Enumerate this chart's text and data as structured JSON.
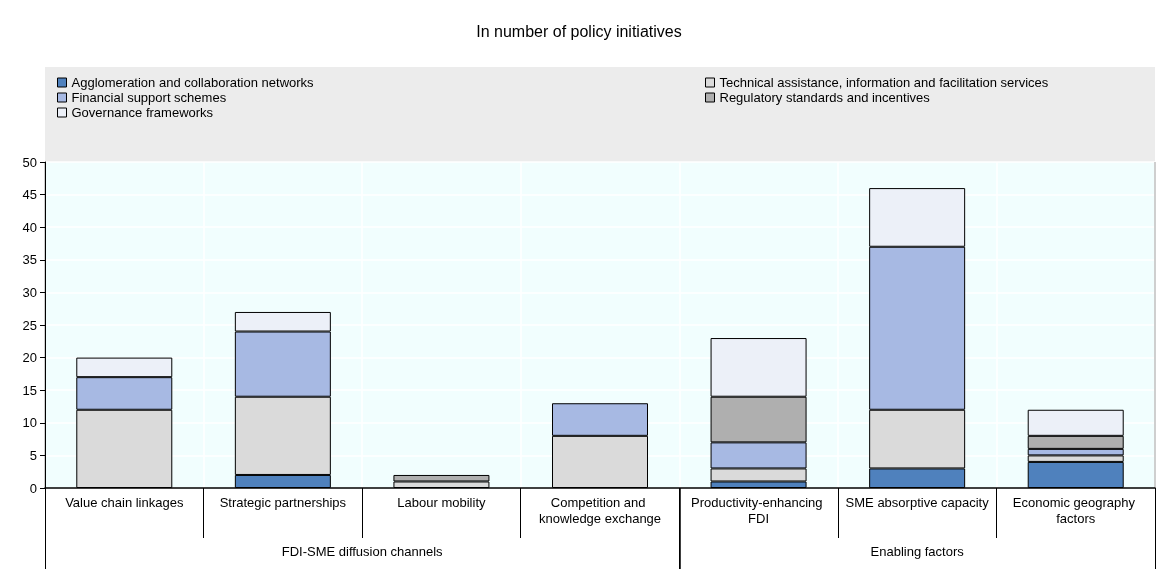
{
  "chart_data": {
    "type": "bar",
    "stacked": true,
    "title": "In number of policy initiatives",
    "categories": [
      "Value chain linkages",
      "Strategic partnerships",
      "Labour mobility",
      "Competition and knowledge exchange",
      "Productivity-enhancing FDI",
      "SME absorptive capacity",
      "Economic geography factors"
    ],
    "series": [
      {
        "name": "Agglomeration and collaboration networks",
        "color": "#4f81bd",
        "values": [
          0,
          2,
          0,
          0,
          1,
          3,
          4
        ]
      },
      {
        "name": "Technical assistance, information and facilitation services",
        "color": "#dadada",
        "values": [
          12,
          12,
          1,
          8,
          2,
          9,
          1
        ]
      },
      {
        "name": "Financial support schemes",
        "color": "#a7b9e3",
        "values": [
          5,
          10,
          0,
          5,
          4,
          25,
          1
        ]
      },
      {
        "name": "Regulatory standards and incentives",
        "color": "#afafaf",
        "values": [
          0,
          0,
          1,
          0,
          7,
          0,
          2
        ]
      },
      {
        "name": "Governance frameworks",
        "color": "#ecf0f8",
        "values": [
          3,
          3,
          0,
          0,
          9,
          9,
          4
        ]
      }
    ],
    "annotations": [
      "FDI-SME diffusion channels",
      "Enabling factors"
    ],
    "ylim": [
      0,
      50
    ],
    "yticks": [
      0,
      5,
      10,
      15,
      20,
      25,
      30,
      35,
      40,
      45,
      50
    ],
    "grid": true,
    "legend": "top"
  }
}
